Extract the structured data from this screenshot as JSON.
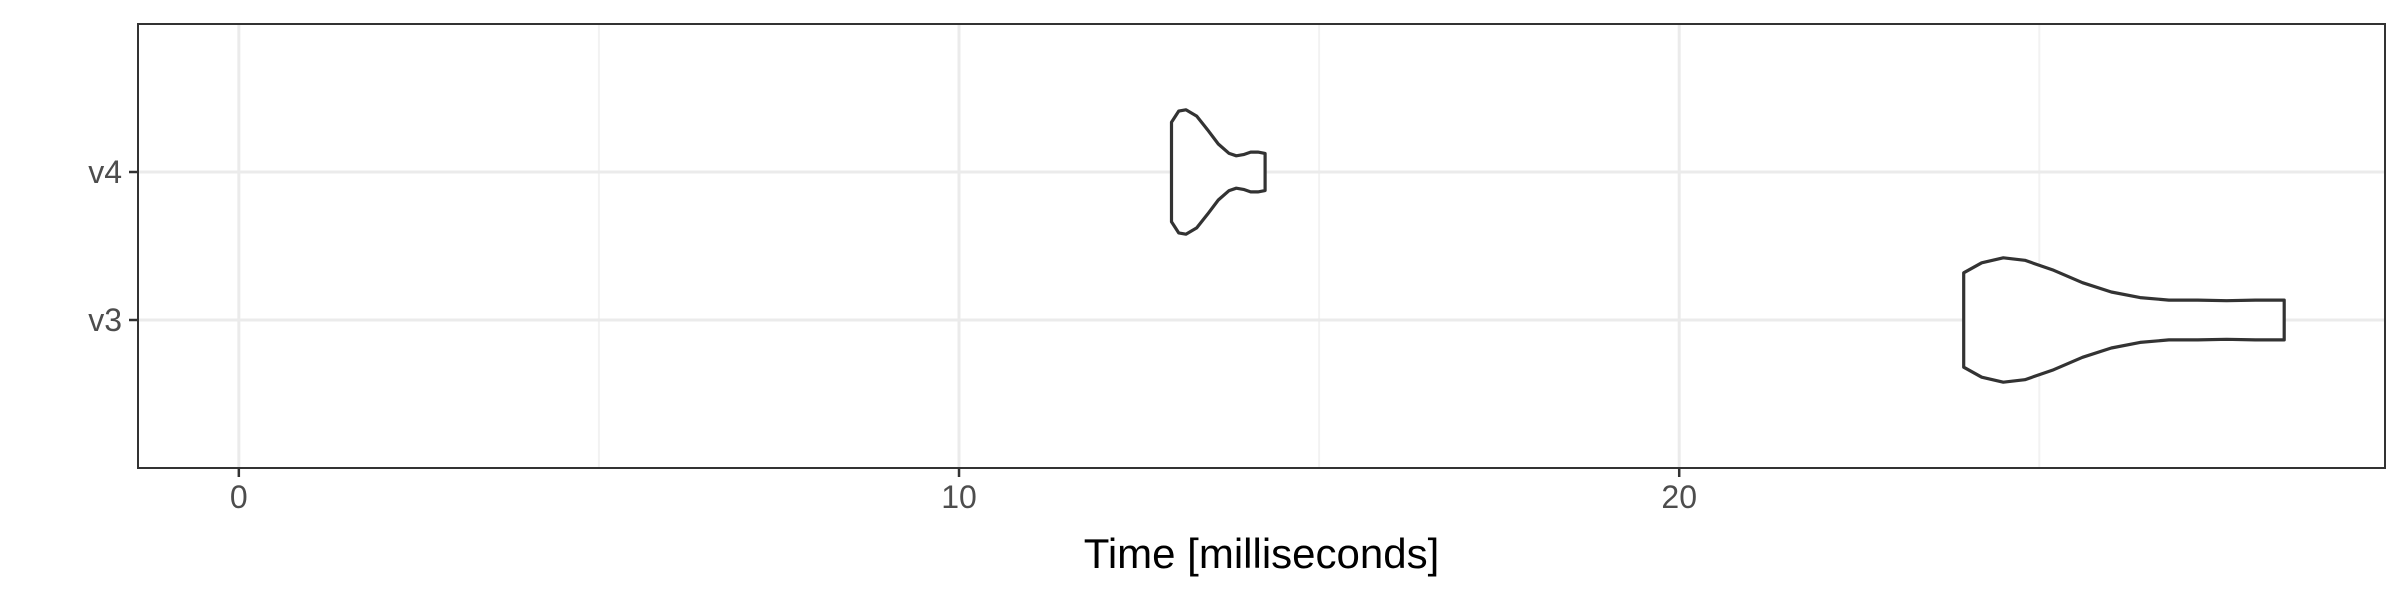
{
  "chart_data": {
    "type": "violin",
    "orientation": "horizontal",
    "xlabel": "Time [milliseconds]",
    "ylabel": "",
    "xlim": [
      -1.4,
      29.8
    ],
    "x_ticks": [
      0,
      10,
      20
    ],
    "x_minor_gridlines": [
      5,
      15,
      25
    ],
    "categories": [
      "v3",
      "v4"
    ],
    "grid": true,
    "legend": "none",
    "series": [
      {
        "category": "v4",
        "min": 12.95,
        "max": 14.25,
        "outline_color": "#333333",
        "density": [
          [
            12.95,
            0.8
          ],
          [
            13.05,
            0.98
          ],
          [
            13.15,
            1.0
          ],
          [
            13.3,
            0.9
          ],
          [
            13.45,
            0.68
          ],
          [
            13.6,
            0.45
          ],
          [
            13.75,
            0.3
          ],
          [
            13.85,
            0.26
          ],
          [
            13.95,
            0.28
          ],
          [
            14.05,
            0.32
          ],
          [
            14.15,
            0.32
          ],
          [
            14.25,
            0.3
          ]
        ]
      },
      {
        "category": "v3",
        "min": 23.95,
        "max": 28.4,
        "outline_color": "#333333",
        "density": [
          [
            23.95,
            0.76
          ],
          [
            24.2,
            0.92
          ],
          [
            24.5,
            1.0
          ],
          [
            24.8,
            0.96
          ],
          [
            25.2,
            0.8
          ],
          [
            25.6,
            0.6
          ],
          [
            26.0,
            0.45
          ],
          [
            26.4,
            0.36
          ],
          [
            26.8,
            0.32
          ],
          [
            27.2,
            0.32
          ],
          [
            27.6,
            0.31
          ],
          [
            28.0,
            0.32
          ],
          [
            28.4,
            0.32
          ]
        ]
      }
    ],
    "colors": {
      "panel_border": "#333333",
      "grid_major": "#ebebeb",
      "grid_minor": "#f2f2f2",
      "text": "#4d4d4d"
    }
  }
}
